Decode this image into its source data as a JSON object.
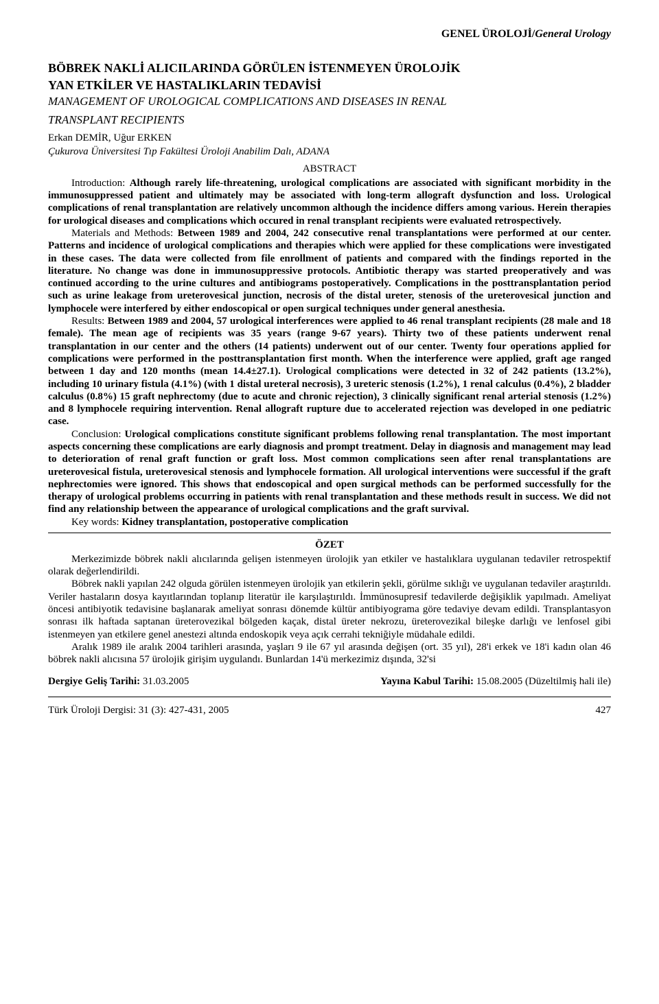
{
  "section": {
    "bold": "GENEL ÜROLOJİ/",
    "italic": "General Urology"
  },
  "title_tr_1": "BÖBREK NAKLİ ALICILARINDA GÖRÜLEN İSTENMEYEN ÜROLOJİK",
  "title_tr_2": "YAN ETKİLER VE HASTALIKLARIN TEDAVİSİ",
  "title_en_1": "MANAGEMENT OF UROLOGICAL COMPLICATIONS AND DISEASES IN RENAL",
  "title_en_2": "TRANSPLANT RECIPIENTS",
  "authors": "Erkan DEMİR, Uğur ERKEN",
  "affiliation": "Çukurova Üniversitesi Tıp Fakültesi Üroloji Anabilim Dalı, ADANA",
  "abstract_label": "ABSTRACT",
  "abs": {
    "intro_lead": "Introduction: ",
    "intro_bold": "Although rarely life-threatening, urological complications are associated with significant morbidity in the immunosuppressed patient and ultimately may be associated with long-term allograft dysfunction and loss. Urological complications of renal transplantation are relatively uncommon although the incidence differs among various. Herein therapies for urological diseases and complications which occured in renal transplant recipients were evaluated retrospectively.",
    "mat_lead": "Materials and Methods: ",
    "mat_bold": "Between 1989 and 2004, 242 consecutive renal transplantations were performed at our center. Patterns and incidence of urological complications and therapies which were applied for these complications were investigated in these cases. The data were collected from file enrollment of patients and compared with the findings reported in the literature. No change was done in immunosuppressive protocols. Antibiotic therapy was started preoperatively and was continued according to the urine cultures and antibiograms postoperatively. Complications in the posttransplantation period such as urine leakage from ureterovesical junction, necrosis of the distal ureter, stenosis of the ureterovesical junction and lymphocele were interfered by either endoscopical or open surgical techniques under general anesthesia.",
    "res_lead": "Results: ",
    "res_bold": "Between 1989 and 2004, 57 urological interferences were applied to 46 renal transplant recipients (28 male and 18 female). The mean age of recipients was 35 years (range 9-67 years). Thirty two of these patients underwent renal transplantation in our center and the others (14 patients) underwent out of our center. Twenty four operations applied for complications were performed in the posttransplantation first month. When the interference were applied, graft age ranged between 1 day and 120 months (mean 14.4±27.1). Urological complications were detected in 32 of 242 patients (13.2%), including 10 urinary fistula (4.1%) (with 1 distal ureteral necrosis), 3 ureteric stenosis (1.2%), 1 renal calculus (0.4%), 2 bladder calculus (0.8%) 15 graft nephrectomy  (due to acute and chronic rejection), 3 clinically significant renal arterial stenosis (1.2%) and 8 lymphocele requiring intervention. Renal allograft rupture due to accelerated rejection was developed in one pediatric case.",
    "con_lead": "Conclusion: ",
    "con_bold": "Urological complications constitute significant problems following renal transplantation. The most important aspects concerning these complications are early diagnosis and prompt treatment. Delay in diagnosis and management may lead to deterioration of renal graft function or graft loss. Most common complications seen after renal transplantations are ureterovesical fistula, ureterovesical stenosis and lymphocele formation. All urological interventions were successful if the graft nephrectomies were ignored. This shows that endoscopical and open surgical methods can be performed successfully for the therapy of urological problems occurring in patients with renal transplantation and these methods result in success. We did not find any relationship between the appearance of urological complications and the graft survival.",
    "kw_lead": "Key words: ",
    "kw_bold": "Kidney transplantation, postoperative complication"
  },
  "ozet_label": "ÖZET",
  "ozet": {
    "p1": "Merkezimizde böbrek nakli alıcılarında gelişen istenmeyen ürolojik yan etkiler ve hastalıklara uygulanan tedaviler retrospektif olarak değerlendirildi.",
    "p2": "Böbrek nakli yapılan 242 olguda görülen istenmeyen ürolojik yan etkilerin şekli, görülme sıklığı ve uygulanan tedaviler araştırıldı. Veriler hastaların dosya kayıtlarından toplanıp literatür ile karşılaştırıldı. İmmünosupresif tedavilerde değişiklik yapılmadı. Ameliyat öncesi antibiyotik tedavisine başlanarak ameliyat sonrası dönemde kültür antibiyograma göre tedaviye devam edildi. Transplantasyon sonrası ilk haftada saptanan üreterovezikal bölgeden kaçak, distal üreter nekrozu, üreterovezikal bileşke darlığı ve lenfosel gibi istenmeyen yan etkilere genel anestezi altında endoskopik veya açık cerrahi tekniğiyle müdahale edildi.",
    "p3": "Aralık 1989 ile aralık 2004 tarihleri arasında, yaşları 9 ile 67 yıl arasında değişen (ort. 35 yıl), 28'i erkek ve 18'i kadın olan 46 böbrek nakli alıcısına 57 ürolojik girişim uygulandı. Bunlardan 14'ü merkezimiz dışında, 32'si"
  },
  "dates": {
    "recv_label": "Dergiye Geliş Tarihi: ",
    "recv_val": "31.03.2005",
    "acc_label": "Yayına Kabul Tarihi: ",
    "acc_val": "15.08.2005 (Düzeltilmiş hali ile)"
  },
  "footer": {
    "journal": "Türk Üroloji Dergisi: 31 (3): 427-431, 2005",
    "page": "427"
  }
}
